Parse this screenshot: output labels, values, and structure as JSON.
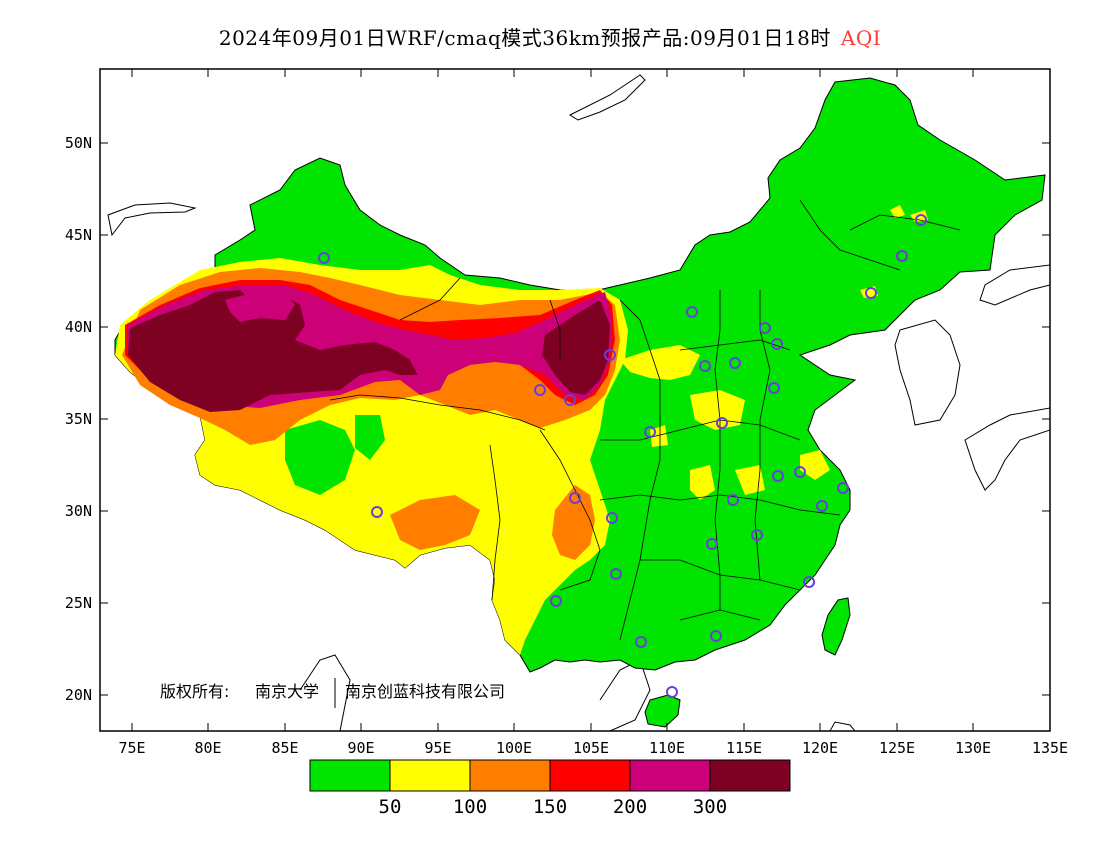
{
  "title": {
    "main": "2024年09月01日WRF/cmaq模式36km预报产品:09月01日18时",
    "variable": "AQI"
  },
  "axes": {
    "x_ticks": [
      "75E",
      "80E",
      "85E",
      "90E",
      "95E",
      "100E",
      "105E",
      "110E",
      "115E",
      "120E",
      "125E",
      "130E",
      "135E"
    ],
    "y_ticks": [
      "50N",
      "45N",
      "40N",
      "35N",
      "30N",
      "25N",
      "20N"
    ]
  },
  "colorbar": {
    "colors": [
      "#00e400",
      "#ffff00",
      "#ff7e00",
      "#ff0000",
      "#cc0077",
      "#7e0023"
    ],
    "labels": [
      "50",
      "100",
      "150",
      "200",
      "300"
    ]
  },
  "copyright": {
    "prefix": "版权所有:",
    "org1": "南京大学",
    "org2": "南京创蓝科技有限公司"
  },
  "colors": {
    "good": "#00e400",
    "moderate": "#ffff00",
    "usg": "#ff7e00",
    "unhealthy": "#ff0000",
    "very_unhealthy": "#cc0077",
    "hazardous": "#7e0023",
    "station_marker": "#6a3fd9"
  }
}
